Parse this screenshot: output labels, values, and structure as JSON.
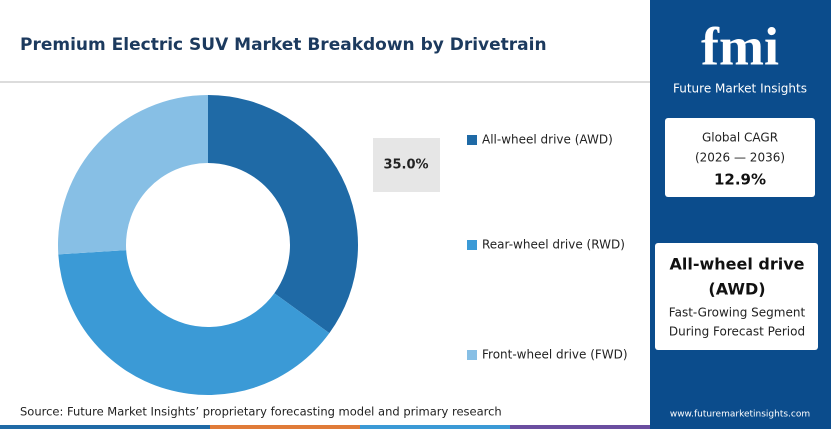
{
  "chart_data": {
    "type": "donut",
    "title": "Premium Electric SUV Market Breakdown by Drivetrain",
    "categories": [
      "All-wheel drive (AWD)",
      "Rear-wheel drive (RWD)",
      "Front-wheel drive (FWD)"
    ],
    "values": [
      35.0,
      39.0,
      26.0
    ],
    "value_labels": [
      "35.0%",
      null,
      null
    ],
    "colors": [
      "#1f6aa6",
      "#3b9ad6",
      "#87bfe5"
    ],
    "source": "Source: Future Market Insights’ proprietary forecasting model and primary research"
  },
  "sidebar": {
    "logo": "fmi",
    "brand": "Future Market Insights",
    "cagr_label": "Global CAGR",
    "cagr_period": "(2026 — 2036)",
    "cagr_value": "12.9%",
    "segment_title": [
      "All-wheel drive",
      "(AWD)"
    ],
    "segment_caption": [
      "Fast-Growing Segment",
      "During Forecast Period"
    ],
    "website": "www.futuremarketinsights.com"
  }
}
